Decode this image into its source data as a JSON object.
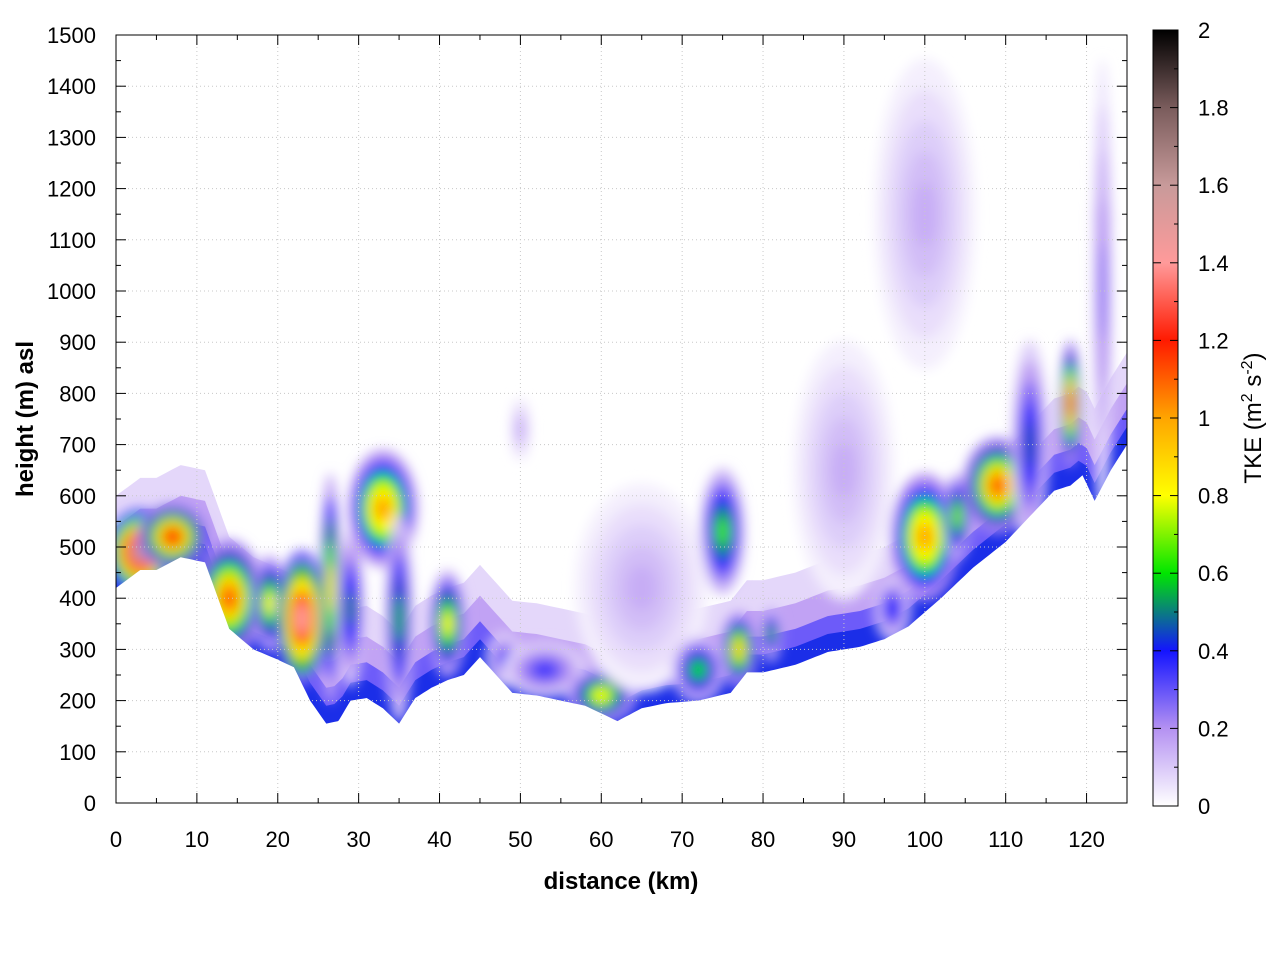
{
  "chart_data": {
    "type": "heatmap",
    "title": "",
    "xlabel": "distance (km)",
    "ylabel": "height (m) asl",
    "xlim": [
      0,
      125
    ],
    "ylim": [
      0,
      1500
    ],
    "x_ticks": [
      "0",
      "10",
      "20",
      "30",
      "40",
      "50",
      "60",
      "70",
      "80",
      "90",
      "100",
      "110",
      "120"
    ],
    "y_ticks": [
      "0",
      "100",
      "200",
      "300",
      "400",
      "500",
      "600",
      "700",
      "800",
      "900",
      "1000",
      "1100",
      "1200",
      "1300",
      "1400",
      "1500"
    ],
    "grid": true,
    "colorbar": {
      "label": "TKE (m",
      "label_sup1": "2",
      "label_mid": " s",
      "label_sup2": "-2",
      "label_end": ")",
      "range": [
        0,
        2
      ],
      "ticks": [
        "0",
        "0.2",
        "0.4",
        "0.6",
        "0.8",
        "1",
        "1.2",
        "1.4",
        "1.6",
        "1.8",
        "2"
      ],
      "colormap": [
        {
          "v": 0.0,
          "c": "#ffffff"
        },
        {
          "v": 0.2,
          "c": "#b491f2"
        },
        {
          "v": 0.4,
          "c": "#1414ff"
        },
        {
          "v": 0.6,
          "c": "#00e600"
        },
        {
          "v": 0.8,
          "c": "#ffff00"
        },
        {
          "v": 1.0,
          "c": "#ffa500"
        },
        {
          "v": 1.2,
          "c": "#ff1a00"
        },
        {
          "v": 1.4,
          "c": "#ff9a9a"
        },
        {
          "v": 1.6,
          "c": "#c89a9a"
        },
        {
          "v": 1.8,
          "c": "#7a5c5c"
        },
        {
          "v": 2.0,
          "c": "#000000"
        }
      ]
    },
    "terrain": {
      "x": [
        0,
        3,
        5,
        8,
        11,
        14,
        17,
        20,
        22,
        24,
        26,
        27.5,
        29,
        31,
        33,
        35,
        37,
        39,
        41,
        43,
        45,
        47,
        49,
        52,
        55,
        58,
        62,
        65,
        68,
        72,
        76,
        78,
        80,
        84,
        88,
        92,
        95,
        98,
        102,
        106,
        110,
        113,
        116,
        118,
        119.5,
        121,
        123,
        125
      ],
      "height": [
        420,
        455,
        455,
        480,
        470,
        340,
        300,
        280,
        265,
        200,
        155,
        160,
        200,
        205,
        185,
        155,
        205,
        225,
        240,
        250,
        285,
        250,
        215,
        210,
        200,
        190,
        160,
        185,
        195,
        200,
        215,
        255,
        255,
        270,
        295,
        305,
        320,
        345,
        400,
        460,
        510,
        560,
        610,
        620,
        640,
        590,
        650,
        700
      ]
    },
    "turbulence_cells": [
      {
        "x": 3,
        "z": 490,
        "rx": 4,
        "rz": 80,
        "tke": 1.6
      },
      {
        "x": 7,
        "z": 520,
        "rx": 4,
        "rz": 60,
        "tke": 1.2
      },
      {
        "x": 14,
        "z": 400,
        "rx": 4,
        "rz": 110,
        "tke": 1.1
      },
      {
        "x": 19,
        "z": 390,
        "rx": 2,
        "rz": 90,
        "tke": 0.8
      },
      {
        "x": 23,
        "z": 360,
        "rx": 3,
        "rz": 130,
        "tke": 1.4
      },
      {
        "x": 26.5,
        "z": 420,
        "rx": 1,
        "rz": 220,
        "tke": 0.85
      },
      {
        "x": 29,
        "z": 380,
        "rx": 1.5,
        "rz": 150,
        "tke": 0.5
      },
      {
        "x": 33,
        "z": 575,
        "rx": 4,
        "rz": 110,
        "tke": 1.0
      },
      {
        "x": 35,
        "z": 360,
        "rx": 1.5,
        "rz": 200,
        "tke": 0.55
      },
      {
        "x": 41,
        "z": 350,
        "rx": 2,
        "rz": 100,
        "tke": 0.8
      },
      {
        "x": 48,
        "z": 280,
        "rx": 2,
        "rz": 50,
        "tke": 0.35
      },
      {
        "x": 50,
        "z": 730,
        "rx": 1,
        "rz": 60,
        "tke": 0.15
      },
      {
        "x": 53,
        "z": 260,
        "rx": 5,
        "rz": 50,
        "tke": 0.35
      },
      {
        "x": 60,
        "z": 210,
        "rx": 4,
        "rz": 50,
        "tke": 0.8
      },
      {
        "x": 65,
        "z": 420,
        "rx": 8,
        "rz": 200,
        "tke": 0.15
      },
      {
        "x": 72,
        "z": 260,
        "rx": 3,
        "rz": 60,
        "tke": 0.6
      },
      {
        "x": 75,
        "z": 530,
        "rx": 2.5,
        "rz": 120,
        "tke": 0.65
      },
      {
        "x": 77,
        "z": 300,
        "rx": 2,
        "rz": 70,
        "tke": 0.9
      },
      {
        "x": 81,
        "z": 330,
        "rx": 1,
        "rz": 50,
        "tke": 0.55
      },
      {
        "x": 90,
        "z": 650,
        "rx": 6,
        "rz": 250,
        "tke": 0.15
      },
      {
        "x": 96,
        "z": 380,
        "rx": 2,
        "rz": 60,
        "tke": 0.4
      },
      {
        "x": 100,
        "z": 520,
        "rx": 4,
        "rz": 120,
        "tke": 1.0
      },
      {
        "x": 100,
        "z": 1150,
        "rx": 6,
        "rz": 300,
        "tke": 0.15
      },
      {
        "x": 104,
        "z": 560,
        "rx": 1.5,
        "rz": 80,
        "tke": 0.7
      },
      {
        "x": 109,
        "z": 620,
        "rx": 4,
        "rz": 90,
        "tke": 1.1
      },
      {
        "x": 113,
        "z": 700,
        "rx": 2,
        "rz": 200,
        "tke": 0.45
      },
      {
        "x": 118,
        "z": 780,
        "rx": 1,
        "rz": 120,
        "tke": 1.1
      },
      {
        "x": 122,
        "z": 1140,
        "rx": 1,
        "rz": 80,
        "tke": 0.65
      },
      {
        "x": 122,
        "z": 1000,
        "rx": 1,
        "rz": 450,
        "tke": 0.25
      }
    ]
  }
}
